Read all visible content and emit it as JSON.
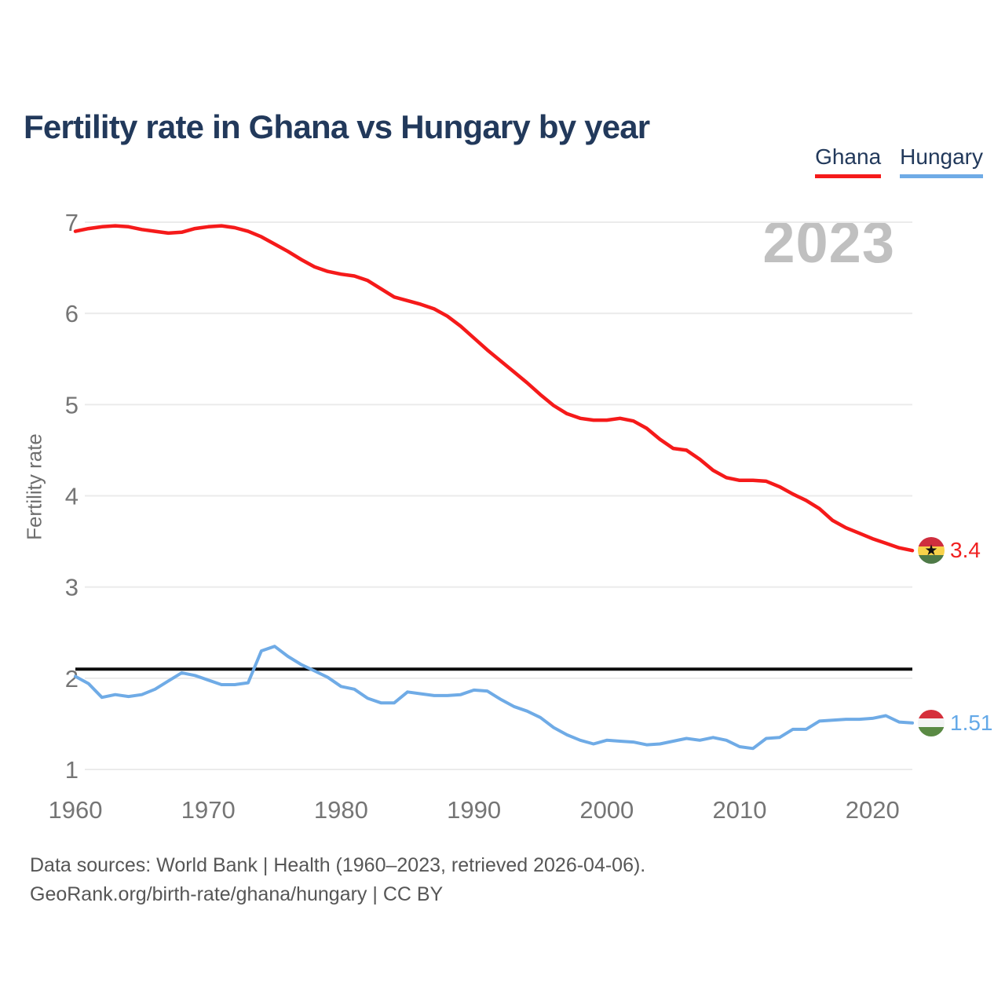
{
  "title": "Fertility rate in Ghana vs Hungary by year",
  "watermark": "2023",
  "ylabel": "Fertility rate",
  "legend": [
    {
      "label": "Ghana",
      "color": "#f51a1a"
    },
    {
      "label": "Hungary",
      "color": "#6fabe6"
    }
  ],
  "footer": {
    "line1": "Data sources: World Bank | Health (1960–2023, retrieved 2026-04-06).",
    "line2": "GeoRank.org/birth-rate/ghana/hungary | CC BY"
  },
  "end_labels": [
    {
      "series": "Ghana",
      "value_label": "3.4",
      "color": "#f02020",
      "flag": "ghana-flag",
      "flag_stripes": [
        "#cf2e3e",
        "#f8d24a",
        "#4e7a47"
      ],
      "flag_star": "★"
    },
    {
      "series": "Hungary",
      "value_label": "1.51",
      "color": "#64a9e8",
      "flag": "hungary-flag",
      "flag_stripes": [
        "#d5303c",
        "#f3f4f4",
        "#5a8a44"
      ]
    }
  ],
  "chart_data": {
    "type": "line",
    "title": "Fertility rate in Ghana vs Hungary by year",
    "xlabel": "",
    "ylabel": "Fertility rate",
    "x_ticks": [
      1960,
      1970,
      1980,
      1990,
      2000,
      2010,
      2020
    ],
    "y_ticks": [
      7,
      6,
      5,
      4,
      3,
      2,
      1
    ],
    "ylim": [
      1,
      7
    ],
    "xlim": [
      1960,
      2023
    ],
    "grid": "horizontal",
    "legend_position": "top-right",
    "reference_line": {
      "value": 2.1,
      "color": "#0b0b0b"
    },
    "x": [
      1960,
      1961,
      1962,
      1963,
      1964,
      1965,
      1966,
      1967,
      1968,
      1969,
      1970,
      1971,
      1972,
      1973,
      1974,
      1975,
      1976,
      1977,
      1978,
      1979,
      1980,
      1981,
      1982,
      1983,
      1984,
      1985,
      1986,
      1987,
      1988,
      1989,
      1990,
      1991,
      1992,
      1993,
      1994,
      1995,
      1996,
      1997,
      1998,
      1999,
      2000,
      2001,
      2002,
      2003,
      2004,
      2005,
      2006,
      2007,
      2008,
      2009,
      2010,
      2011,
      2012,
      2013,
      2014,
      2015,
      2016,
      2017,
      2018,
      2019,
      2020,
      2021,
      2022,
      2023
    ],
    "series": [
      {
        "name": "Ghana",
        "color": "#f51a1a",
        "values": [
          6.9,
          6.93,
          6.95,
          6.96,
          6.95,
          6.92,
          6.9,
          6.88,
          6.89,
          6.93,
          6.95,
          6.96,
          6.94,
          6.9,
          6.84,
          6.76,
          6.68,
          6.59,
          6.51,
          6.46,
          6.43,
          6.41,
          6.36,
          6.27,
          6.18,
          6.14,
          6.1,
          6.05,
          5.97,
          5.86,
          5.73,
          5.6,
          5.48,
          5.36,
          5.24,
          5.11,
          4.99,
          4.9,
          4.85,
          4.83,
          4.83,
          4.85,
          4.82,
          4.74,
          4.62,
          4.52,
          4.5,
          4.4,
          4.28,
          4.2,
          4.17,
          4.17,
          4.16,
          4.1,
          4.02,
          3.95,
          3.86,
          3.73,
          3.65,
          3.59,
          3.53,
          3.48,
          3.43,
          3.4
        ]
      },
      {
        "name": "Hungary",
        "color": "#6fabe6",
        "values": [
          2.02,
          1.94,
          1.79,
          1.82,
          1.8,
          1.82,
          1.88,
          1.97,
          2.06,
          2.03,
          1.98,
          1.93,
          1.93,
          1.95,
          2.3,
          2.35,
          2.24,
          2.15,
          2.08,
          2.01,
          1.91,
          1.88,
          1.78,
          1.73,
          1.73,
          1.85,
          1.83,
          1.81,
          1.81,
          1.82,
          1.87,
          1.86,
          1.77,
          1.69,
          1.64,
          1.57,
          1.46,
          1.38,
          1.32,
          1.28,
          1.32,
          1.31,
          1.3,
          1.27,
          1.28,
          1.31,
          1.34,
          1.32,
          1.35,
          1.32,
          1.25,
          1.23,
          1.34,
          1.35,
          1.44,
          1.44,
          1.53,
          1.54,
          1.55,
          1.55,
          1.56,
          1.59,
          1.52,
          1.51
        ]
      }
    ]
  }
}
